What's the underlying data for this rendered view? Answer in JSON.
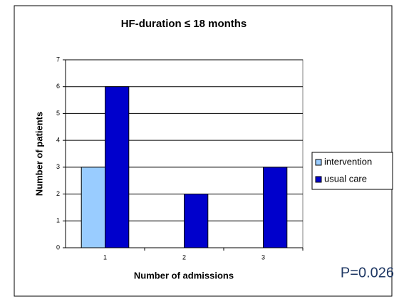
{
  "chart_data": {
    "type": "bar",
    "title": "HF-duration ≤ 18 months",
    "x_label": "Number of admissions",
    "y_label": "Number of patients",
    "categories": [
      "1",
      "2",
      "3"
    ],
    "series": [
      {
        "name": "intervention",
        "color": "#99ccff",
        "values": [
          3,
          0,
          0
        ]
      },
      {
        "name": "usual care",
        "color": "#0000cc",
        "values": [
          6,
          2,
          3
        ]
      }
    ],
    "ylim": [
      0,
      7
    ],
    "yticks": [
      0,
      1,
      2,
      3,
      4,
      5,
      6,
      7
    ],
    "grid": true,
    "legend": "right",
    "annotation": "P=0.026"
  }
}
